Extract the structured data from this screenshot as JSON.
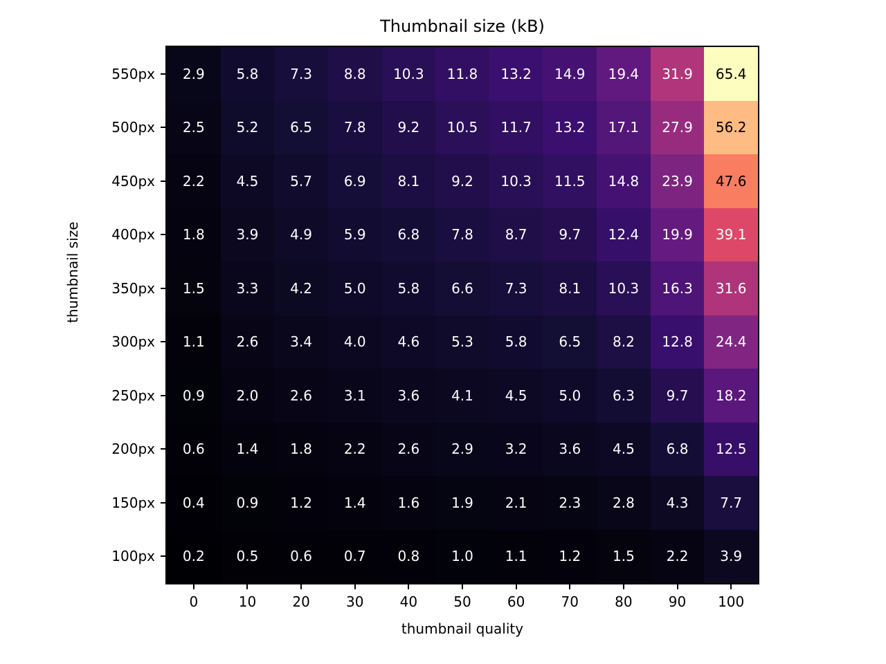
{
  "chart_data": {
    "type": "heatmap",
    "title": "Thumbnail size (kB)",
    "xlabel": "thumbnail quality",
    "ylabel": "thumbnail size",
    "x_tick_labels": [
      "0",
      "10",
      "20",
      "30",
      "40",
      "50",
      "60",
      "70",
      "80",
      "90",
      "100"
    ],
    "y_tick_labels": [
      "550px",
      "500px",
      "450px",
      "400px",
      "350px",
      "300px",
      "250px",
      "200px",
      "150px",
      "100px"
    ],
    "rows": [
      {
        "label": "550px",
        "values": [
          2.9,
          5.8,
          7.3,
          8.8,
          10.3,
          11.8,
          13.2,
          14.9,
          19.4,
          31.9,
          65.4
        ]
      },
      {
        "label": "500px",
        "values": [
          2.5,
          5.2,
          6.5,
          7.8,
          9.2,
          10.5,
          11.7,
          13.2,
          17.1,
          27.9,
          56.2
        ]
      },
      {
        "label": "450px",
        "values": [
          2.2,
          4.5,
          5.7,
          6.9,
          8.1,
          9.2,
          10.3,
          11.5,
          14.8,
          23.9,
          47.6
        ]
      },
      {
        "label": "400px",
        "values": [
          1.8,
          3.9,
          4.9,
          5.9,
          6.8,
          7.8,
          8.7,
          9.7,
          12.4,
          19.9,
          39.1
        ]
      },
      {
        "label": "350px",
        "values": [
          1.5,
          3.3,
          4.2,
          5.0,
          5.8,
          6.6,
          7.3,
          8.1,
          10.3,
          16.3,
          31.6
        ]
      },
      {
        "label": "300px",
        "values": [
          1.1,
          2.6,
          3.4,
          4.0,
          4.6,
          5.3,
          5.8,
          6.5,
          8.2,
          12.8,
          24.4
        ]
      },
      {
        "label": "250px",
        "values": [
          0.9,
          2.0,
          2.6,
          3.1,
          3.6,
          4.1,
          4.5,
          5.0,
          6.3,
          9.7,
          18.2
        ]
      },
      {
        "label": "200px",
        "values": [
          0.6,
          1.4,
          1.8,
          2.2,
          2.6,
          2.9,
          3.2,
          3.6,
          4.5,
          6.8,
          12.5
        ]
      },
      {
        "label": "150px",
        "values": [
          0.4,
          0.9,
          1.2,
          1.4,
          1.6,
          1.9,
          2.1,
          2.3,
          2.8,
          4.3,
          7.7
        ]
      },
      {
        "label": "100px",
        "values": [
          0.2,
          0.5,
          0.6,
          0.7,
          0.8,
          1.0,
          1.1,
          1.2,
          1.5,
          2.2,
          3.9
        ]
      }
    ],
    "value_format_decimals": 1,
    "vmin": 0.2,
    "vmax": 65.4,
    "colormap": "magma",
    "colormap_stops": [
      "#000004",
      "#140e36",
      "#3b0f70",
      "#641a80",
      "#8c2981",
      "#b73779",
      "#de4968",
      "#f7705c",
      "#fe9f6d",
      "#fecf92",
      "#fcfdbf"
    ],
    "annotation_colors": {
      "on_dark": "#ffffff",
      "on_light": "#000000"
    },
    "axis_color": "#000000",
    "grid": false,
    "legend": "none"
  }
}
